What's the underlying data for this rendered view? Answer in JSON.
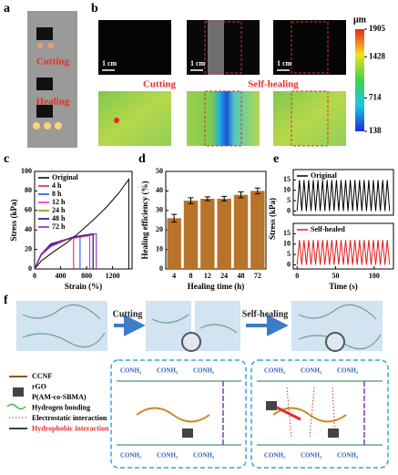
{
  "panels": {
    "a": "a",
    "b": "b",
    "c": "c",
    "d": "d",
    "e": "e",
    "f": "f"
  },
  "panel_a": {
    "cutting": "Cutting",
    "healing": "Healing"
  },
  "panel_b": {
    "scale_bars": [
      "1 cm",
      "1 cm",
      "1 cm"
    ],
    "cutting": "Cutting",
    "self_healing": "Self-healing",
    "colorbar": {
      "unit": "μm",
      "lim": [
        138,
        1905
      ],
      "ticks": [
        1905,
        1428,
        714,
        138
      ]
    }
  },
  "chart_data": [
    {
      "type": "line",
      "xlabel": "Strain (%)",
      "ylabel": "Stress (kPa)",
      "xlim": [
        0,
        1500
      ],
      "xticks": [
        0,
        400,
        800,
        1200
      ],
      "ylim": [
        0,
        100
      ],
      "yticks": [
        0,
        20,
        40,
        60,
        80,
        100
      ],
      "legend": "upper left",
      "series": [
        {
          "name": "Original",
          "color": "#000000",
          "x": [
            0,
            100,
            300,
            500,
            700,
            900,
            1100,
            1300,
            1450,
            1450
          ],
          "values": [
            0,
            8,
            18,
            27,
            38,
            50,
            63,
            78,
            92,
            0
          ]
        },
        {
          "name": "4 h",
          "color": "#e41a1c",
          "x": [
            0,
            100,
            200,
            400,
            600,
            600
          ],
          "values": [
            0,
            14,
            22,
            29,
            32,
            0
          ]
        },
        {
          "name": "8 h",
          "color": "#1f3fff",
          "x": [
            0,
            100,
            250,
            500,
            700,
            700
          ],
          "values": [
            0,
            14,
            23,
            30,
            33,
            0
          ]
        },
        {
          "name": "12 h",
          "color": "#e020e0",
          "x": [
            0,
            100,
            250,
            550,
            850,
            850
          ],
          "values": [
            0,
            14,
            24,
            31,
            34,
            0
          ]
        },
        {
          "name": "24 h",
          "color": "#8a8a00",
          "x": [
            0,
            100,
            250,
            600,
            900,
            900
          ],
          "values": [
            0,
            15,
            25,
            32,
            35,
            0
          ]
        },
        {
          "name": "48 h",
          "color": "#000080",
          "x": [
            0,
            100,
            250,
            600,
            900,
            900
          ],
          "values": [
            0,
            15,
            25,
            33,
            36,
            0
          ]
        },
        {
          "name": "72 h",
          "color": "#7b1fa2",
          "x": [
            0,
            100,
            250,
            650,
            950,
            950
          ],
          "values": [
            0,
            15,
            26,
            33,
            36,
            0
          ]
        }
      ]
    },
    {
      "type": "bar",
      "xlabel": "Healing time (h)",
      "ylabel": "Healing efficiency (%)",
      "categories": [
        "4",
        "8",
        "12",
        "24",
        "48",
        "72"
      ],
      "values": [
        26,
        35,
        36,
        36,
        38,
        40
      ],
      "errors": [
        2,
        1.5,
        1,
        1.2,
        1.5,
        1.5
      ],
      "color": "#b8732a",
      "ylim": [
        0,
        50
      ],
      "yticks": [
        0,
        10,
        20,
        30,
        40,
        50
      ]
    },
    {
      "type": "line",
      "ylabel": "Stress (kPa)",
      "xlim": [
        -5,
        125
      ],
      "ylim": [
        -2,
        20
      ],
      "yticks": [
        0,
        5,
        10,
        15
      ],
      "legend": "upper left",
      "x": [
        0,
        3,
        6,
        9,
        12,
        15,
        18,
        21,
        24,
        27,
        30,
        33,
        36,
        39,
        42,
        45,
        48,
        51,
        54,
        57,
        60,
        63,
        66,
        69,
        72,
        75,
        78,
        81,
        84,
        87,
        90,
        93,
        96,
        99,
        102,
        105,
        108,
        111,
        114,
        117,
        120
      ],
      "series": [
        {
          "name": "Original",
          "color": "#000000",
          "values": [
            0,
            15,
            0,
            15,
            0,
            15,
            0,
            15,
            0,
            15,
            0,
            15,
            0,
            15,
            0,
            15,
            0,
            15,
            0,
            15,
            0,
            15,
            0,
            15,
            0,
            15,
            0,
            15,
            0,
            15,
            0,
            15,
            0,
            15,
            0,
            15,
            0,
            15,
            0,
            15,
            0
          ]
        }
      ]
    },
    {
      "type": "line",
      "xlabel": "Time (s)",
      "xlim": [
        -5,
        125
      ],
      "xticks": [
        0,
        50,
        100
      ],
      "ylim": [
        -2,
        20
      ],
      "yticks": [
        0,
        5,
        10,
        15
      ],
      "legend": "upper left",
      "x": [
        0,
        3,
        6,
        9,
        12,
        15,
        18,
        21,
        24,
        27,
        30,
        33,
        36,
        39,
        42,
        45,
        48,
        51,
        54,
        57,
        60,
        63,
        66,
        69,
        72,
        75,
        78,
        81,
        84,
        87,
        90,
        93,
        96,
        99,
        102,
        105,
        108,
        111,
        114,
        117,
        120
      ],
      "series": [
        {
          "name": "Self-healed",
          "color": "#e41a1c",
          "values": [
            0,
            12,
            0,
            12,
            0,
            12,
            0,
            12,
            0,
            12,
            0,
            12,
            0,
            12,
            0,
            12,
            0,
            12,
            0,
            12,
            0,
            12,
            0,
            12,
            0,
            12,
            0,
            12,
            0,
            12,
            0,
            12,
            0,
            12,
            0,
            12,
            0,
            12,
            0,
            12,
            0
          ]
        }
      ]
    }
  ],
  "panel_f": {
    "cutting": "Cutting",
    "self_healing": "Self-healing",
    "legend": [
      "CCNF",
      "rGO",
      "P(AM-co-SBMA)",
      "Hydrogen bonding",
      "Electrostatic interaction",
      "Hydrophobic interaction"
    ],
    "groups": [
      "CONH₂",
      "CONH₂",
      "CONH₂",
      "CONH₂",
      "CONH₂",
      "CONH₂",
      "CONH₂",
      "CONH₂",
      "CONH₂",
      "CONH₂",
      "CONH₂",
      "CONH₂"
    ]
  }
}
